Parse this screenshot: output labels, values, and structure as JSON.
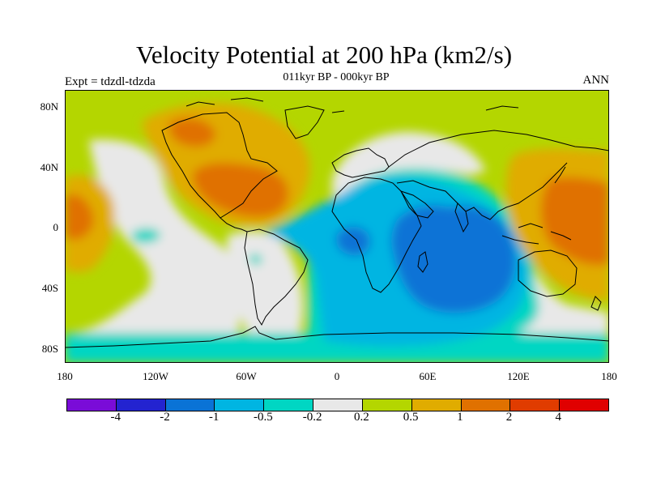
{
  "title": "Velocity Potential at 200 hPa (km2/s)",
  "subtitle": "011kyr BP - 000kyr BP",
  "expt_label": "Expt = tdzdl-tdzda",
  "season_label": "ANN",
  "map": {
    "lat_ticks": [
      "80N",
      "40N",
      "0",
      "40S",
      "80S"
    ],
    "lon_ticks": [
      "180",
      "120W",
      "60W",
      "0",
      "60E",
      "120E",
      "180"
    ],
    "lon_range": [
      -180,
      180
    ],
    "lat_range": [
      -90,
      90
    ]
  },
  "colorbar": {
    "colors": [
      "#7a0cd8",
      "#2323d0",
      "#0a73d6",
      "#00b5e2",
      "#00d6c3",
      "#e8e8e8",
      "#b4d600",
      "#e0ac00",
      "#e07100",
      "#e03c00",
      "#e00000"
    ],
    "levels": [
      "-4",
      "-2",
      "-1",
      "-0.5",
      "-0.2",
      "0.2",
      "0.5",
      "1",
      "2",
      "4"
    ]
  }
}
